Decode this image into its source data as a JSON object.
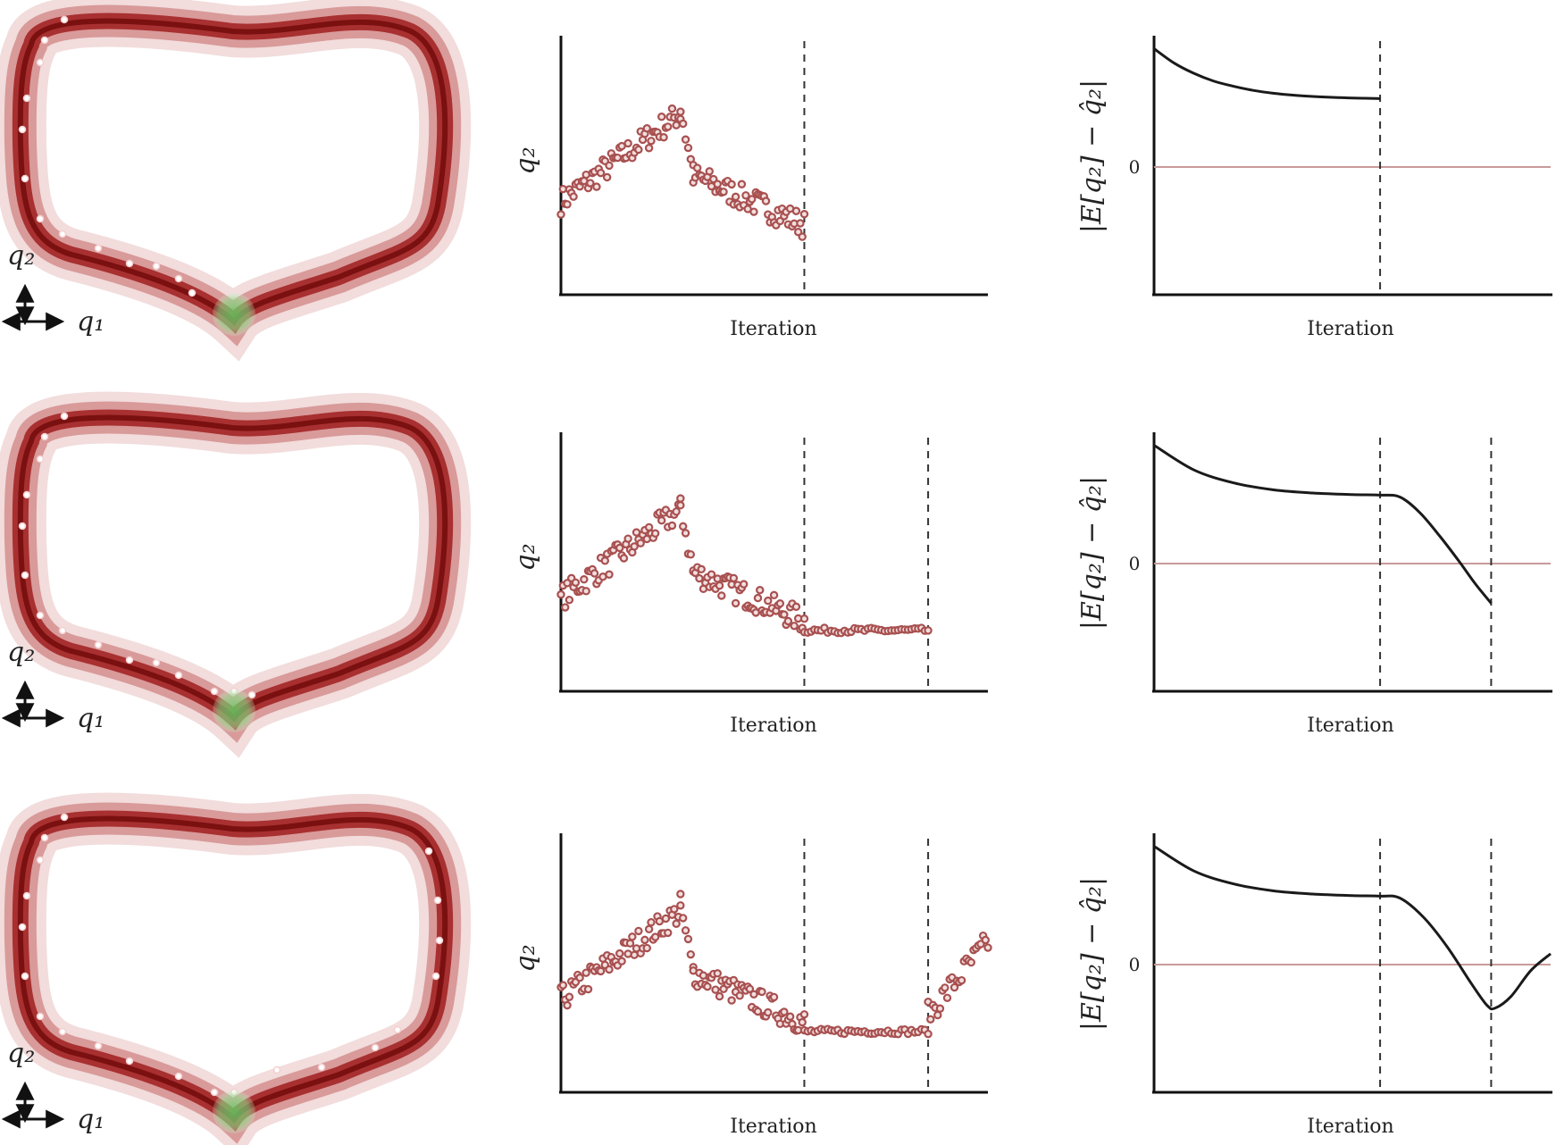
{
  "figure": {
    "axis_symbol_x": "q₁",
    "axis_symbol_y": "q₂",
    "colors": {
      "trajectory": "#8b1a1a",
      "goal": "#7ed67e",
      "points": "#a85050",
      "zero_line": "#c99a9a"
    },
    "rows": [
      {
        "middle": {
          "ylabel": "q₂",
          "xlabel": "Iteration"
        },
        "right": {
          "ylabel": "|E[q₂] − q̂₂|",
          "xlabel": "Iteration",
          "zero_tick": "0"
        }
      },
      {
        "middle": {
          "ylabel": "q₂",
          "xlabel": "Iteration"
        },
        "right": {
          "ylabel": "|E[q₂] − q̂₂|",
          "xlabel": "Iteration",
          "zero_tick": "0"
        }
      },
      {
        "middle": {
          "ylabel": "q₂",
          "xlabel": "Iteration"
        },
        "right": {
          "ylabel": "|E[q₂] − q̂₂|",
          "xlabel": "Iteration",
          "zero_tick": "0"
        }
      }
    ]
  },
  "chart_data": [
    {
      "type": "scatter",
      "panel": "row1-middle",
      "xlabel": "Iteration",
      "ylabel": "q2",
      "xlim": [
        0,
        100
      ],
      "ylim": [
        0,
        1
      ],
      "vlines": [
        57
      ],
      "series": [
        {
          "segments": [
            {
              "x0": 0,
              "x1": 28,
              "y0": 0.36,
              "y1": 0.7,
              "n": 58,
              "jitter": 0.05
            },
            {
              "x0": 28,
              "x1": 31,
              "y0": 0.72,
              "y1": 0.46,
              "n": 6,
              "jitter": 0.05
            },
            {
              "x0": 31,
              "x1": 57,
              "y0": 0.46,
              "y1": 0.27,
              "n": 56,
              "jitter": 0.05
            }
          ]
        }
      ]
    },
    {
      "type": "line",
      "panel": "row1-right",
      "xlabel": "Iteration",
      "ylabel": "|E[q2] - q2hat|",
      "xlim": [
        0,
        100
      ],
      "ylim": [
        -1,
        1
      ],
      "vlines": [
        57
      ],
      "zero_line": 0,
      "series": [
        {
          "x": [
            0,
            5,
            10,
            15,
            20,
            25,
            30,
            35,
            40,
            45,
            50,
            57
          ],
          "y": [
            0.9,
            0.79,
            0.71,
            0.65,
            0.61,
            0.578,
            0.556,
            0.541,
            0.531,
            0.524,
            0.519,
            0.515
          ]
        }
      ]
    },
    {
      "type": "scatter",
      "panel": "row2-middle",
      "xlabel": "Iteration",
      "ylabel": "q2",
      "xlim": [
        0,
        100
      ],
      "ylim": [
        0,
        1
      ],
      "vlines": [
        57,
        86
      ],
      "series": [
        {
          "segments": [
            {
              "x0": 0,
              "x1": 28,
              "y0": 0.36,
              "y1": 0.7,
              "n": 58,
              "jitter": 0.05
            },
            {
              "x0": 28,
              "x1": 31,
              "y0": 0.72,
              "y1": 0.46,
              "n": 6,
              "jitter": 0.05
            },
            {
              "x0": 31,
              "x1": 57,
              "y0": 0.46,
              "y1": 0.27,
              "n": 56,
              "jitter": 0.05
            },
            {
              "x0": 57,
              "x1": 86,
              "y0": 0.235,
              "y1": 0.235,
              "n": 38,
              "jitter": 0.01
            }
          ]
        }
      ]
    },
    {
      "type": "line",
      "panel": "row2-right",
      "xlabel": "Iteration",
      "ylabel": "|E[q2] - q2hat|",
      "xlim": [
        0,
        100
      ],
      "ylim": [
        -1,
        1
      ],
      "vlines": [
        57,
        85
      ],
      "zero_line": 0,
      "series": [
        {
          "x": [
            0,
            10,
            20,
            30,
            40,
            50,
            57,
            62,
            67,
            72,
            77,
            81,
            85
          ],
          "y": [
            0.9,
            0.71,
            0.61,
            0.556,
            0.531,
            0.519,
            0.515,
            0.5,
            0.38,
            0.2,
            0.0,
            -0.17,
            -0.32
          ]
        }
      ]
    },
    {
      "type": "scatter",
      "panel": "row3-middle",
      "xlabel": "Iteration",
      "ylabel": "q2",
      "xlim": [
        0,
        100
      ],
      "ylim": [
        0,
        1
      ],
      "vlines": [
        57,
        86
      ],
      "series": [
        {
          "segments": [
            {
              "x0": 0,
              "x1": 28,
              "y0": 0.36,
              "y1": 0.7,
              "n": 58,
              "jitter": 0.05
            },
            {
              "x0": 28,
              "x1": 31,
              "y0": 0.72,
              "y1": 0.46,
              "n": 6,
              "jitter": 0.05
            },
            {
              "x0": 31,
              "x1": 57,
              "y0": 0.46,
              "y1": 0.27,
              "n": 56,
              "jitter": 0.05
            },
            {
              "x0": 57,
              "x1": 86,
              "y0": 0.235,
              "y1": 0.235,
              "n": 38,
              "jitter": 0.01
            },
            {
              "x0": 86,
              "x1": 100,
              "y0": 0.3,
              "y1": 0.58,
              "n": 26,
              "jitter": 0.05
            }
          ]
        }
      ]
    },
    {
      "type": "line",
      "panel": "row3-right",
      "xlabel": "Iteration",
      "ylabel": "|E[q2] - q2hat|",
      "xlim": [
        0,
        100
      ],
      "ylim": [
        -1,
        1
      ],
      "vlines": [
        57,
        85
      ],
      "zero_line": 0,
      "series": [
        {
          "x": [
            0,
            10,
            20,
            30,
            40,
            50,
            57,
            62,
            68,
            74,
            80,
            84,
            86,
            90,
            95,
            100
          ],
          "y": [
            0.9,
            0.71,
            0.61,
            0.556,
            0.531,
            0.519,
            0.515,
            0.5,
            0.35,
            0.12,
            -0.16,
            -0.33,
            -0.35,
            -0.26,
            -0.06,
            0.07
          ]
        }
      ]
    }
  ]
}
